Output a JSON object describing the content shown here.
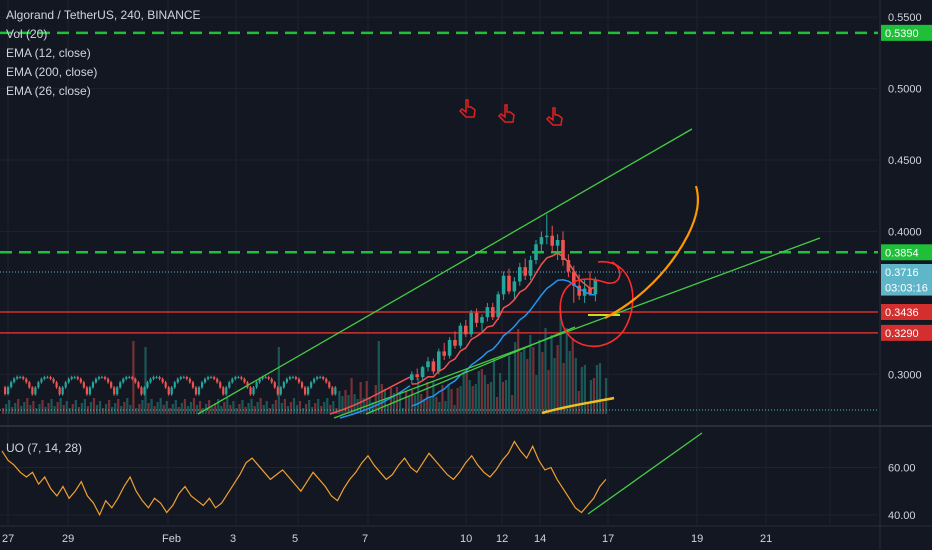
{
  "header": {
    "title": "Algorand / TetherUS, 240, BINANCE",
    "indicators": [
      "Vol (20)",
      "EMA (12, close)",
      "EMA (200, close)",
      "EMA (26, close)"
    ]
  },
  "oscillator": {
    "label": "UO (7, 14, 28)"
  },
  "colors": {
    "background": "#131722",
    "up": "#26a69a",
    "down": "#ef5350",
    "green_dashed": "#1fbf3a",
    "trendline": "#44cc44",
    "red_level": "#d32f2f",
    "ema12": "#ef5350",
    "ema26": "#2196f3",
    "orange": "#ff9800",
    "uo": "#f0a030",
    "text": "#d1d4dc"
  },
  "chart_data": {
    "type": "candlestick",
    "y_ticks": [
      "0.5500",
      "0.5000",
      "0.4500",
      "0.4000",
      "0.3000"
    ],
    "ylim": [
      0.268,
      0.562
    ],
    "x_ticks": [
      "27",
      "29",
      "Feb",
      "3",
      "5",
      "7",
      "10",
      "12",
      "14",
      "17",
      "19",
      "21"
    ],
    "price_labels": [
      {
        "text": "0.5390",
        "value": 0.539,
        "style": "green"
      },
      {
        "text": "0.3854",
        "value": 0.3854,
        "style": "green"
      },
      {
        "text": "0.3716",
        "value": 0.3716,
        "style": "teal"
      },
      {
        "text": "03:03:16",
        "value": 0.3607,
        "style": "teal"
      },
      {
        "text": "0.3436",
        "value": 0.3436,
        "style": "red"
      },
      {
        "text": "0.3290",
        "value": 0.329,
        "style": "red"
      }
    ],
    "horizontal_levels": [
      {
        "value": 0.539,
        "style": "dashed-green"
      },
      {
        "value": 0.3854,
        "style": "dashed-green"
      },
      {
        "value": 0.3716,
        "style": "dotted-teal"
      },
      {
        "value": 0.3436,
        "style": "solid-red"
      },
      {
        "value": 0.329,
        "style": "solid-red"
      }
    ],
    "candles_recent": [
      [
        0.296,
        0.302,
        0.293,
        0.3
      ],
      [
        0.3,
        0.304,
        0.296,
        0.298
      ],
      [
        0.298,
        0.306,
        0.295,
        0.305
      ],
      [
        0.305,
        0.312,
        0.302,
        0.309
      ],
      [
        0.309,
        0.311,
        0.3,
        0.302
      ],
      [
        0.302,
        0.318,
        0.3,
        0.316
      ],
      [
        0.316,
        0.322,
        0.31,
        0.313
      ],
      [
        0.313,
        0.326,
        0.311,
        0.324
      ],
      [
        0.324,
        0.33,
        0.318,
        0.32
      ],
      [
        0.32,
        0.336,
        0.318,
        0.334
      ],
      [
        0.334,
        0.338,
        0.326,
        0.328
      ],
      [
        0.328,
        0.345,
        0.326,
        0.343
      ],
      [
        0.343,
        0.346,
        0.333,
        0.336
      ],
      [
        0.336,
        0.342,
        0.33,
        0.34
      ],
      [
        0.34,
        0.35,
        0.337,
        0.347
      ],
      [
        0.347,
        0.35,
        0.338,
        0.34
      ],
      [
        0.34,
        0.358,
        0.338,
        0.356
      ],
      [
        0.356,
        0.372,
        0.352,
        0.369
      ],
      [
        0.369,
        0.374,
        0.356,
        0.358
      ],
      [
        0.358,
        0.368,
        0.352,
        0.365
      ],
      [
        0.365,
        0.378,
        0.362,
        0.375
      ],
      [
        0.375,
        0.381,
        0.366,
        0.369
      ],
      [
        0.369,
        0.383,
        0.366,
        0.38
      ],
      [
        0.38,
        0.394,
        0.377,
        0.391
      ],
      [
        0.391,
        0.4,
        0.385,
        0.396
      ],
      [
        0.396,
        0.412,
        0.391,
        0.397
      ],
      [
        0.397,
        0.404,
        0.386,
        0.39
      ],
      [
        0.39,
        0.398,
        0.38,
        0.394
      ],
      [
        0.394,
        0.4,
        0.376,
        0.38
      ],
      [
        0.38,
        0.384,
        0.368,
        0.372
      ],
      [
        0.372,
        0.376,
        0.35,
        0.362
      ],
      [
        0.362,
        0.37,
        0.352,
        0.355
      ],
      [
        0.355,
        0.366,
        0.35,
        0.36
      ],
      [
        0.36,
        0.372,
        0.355,
        0.356
      ],
      [
        0.356,
        0.368,
        0.351,
        0.366
      ]
    ],
    "uo_ticks": [
      "60.00",
      "40.00"
    ],
    "uo_ylim": [
      37,
      75
    ],
    "uo_values": [
      67,
      63,
      61,
      58,
      56,
      58,
      53,
      56,
      51,
      48,
      52,
      47,
      50,
      54,
      48,
      45,
      40,
      46,
      43,
      47,
      52,
      56,
      50,
      46,
      43,
      47,
      45,
      41,
      44,
      49,
      52,
      48,
      46,
      44,
      47,
      43,
      45,
      49,
      53,
      57,
      62,
      64,
      61,
      58,
      55,
      57,
      59,
      56,
      53,
      50,
      54,
      58,
      55,
      52,
      48,
      46,
      51,
      55,
      58,
      62,
      65,
      61,
      58,
      55,
      57,
      61,
      64,
      60,
      58,
      62,
      66,
      63,
      60,
      57,
      55,
      58,
      62,
      65,
      61,
      58,
      56,
      59,
      63,
      66,
      71,
      67,
      64,
      69,
      63,
      59,
      60,
      55,
      51,
      47,
      43,
      41,
      44,
      47,
      52,
      55
    ],
    "annotations": [
      {
        "type": "trendline",
        "series": "upper channel"
      },
      {
        "type": "trendline",
        "series": "lower channel"
      },
      {
        "type": "circle",
        "color": "red"
      },
      {
        "type": "curve",
        "color": "orange"
      }
    ]
  }
}
